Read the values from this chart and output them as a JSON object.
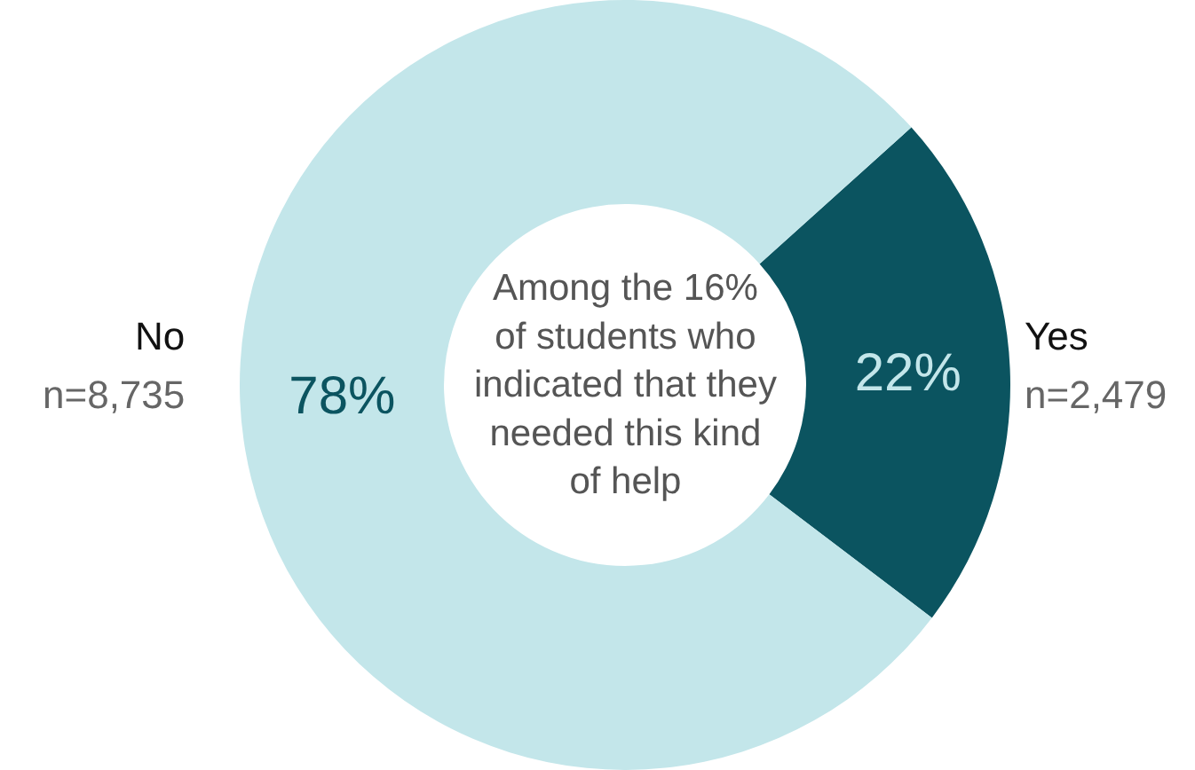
{
  "chart_data": {
    "type": "donut",
    "categories": [
      "Yes",
      "No"
    ],
    "values": [
      22,
      78
    ],
    "colors": [
      "#0b5460",
      "#c3e6ea"
    ],
    "value_labels": [
      "22%",
      "78%"
    ],
    "annotations": [
      "Among the 16%\nof students who\nindicated that they\nneeded this kind\nof help",
      "n=2,479",
      "n=8,735"
    ],
    "legend": false
  }
}
